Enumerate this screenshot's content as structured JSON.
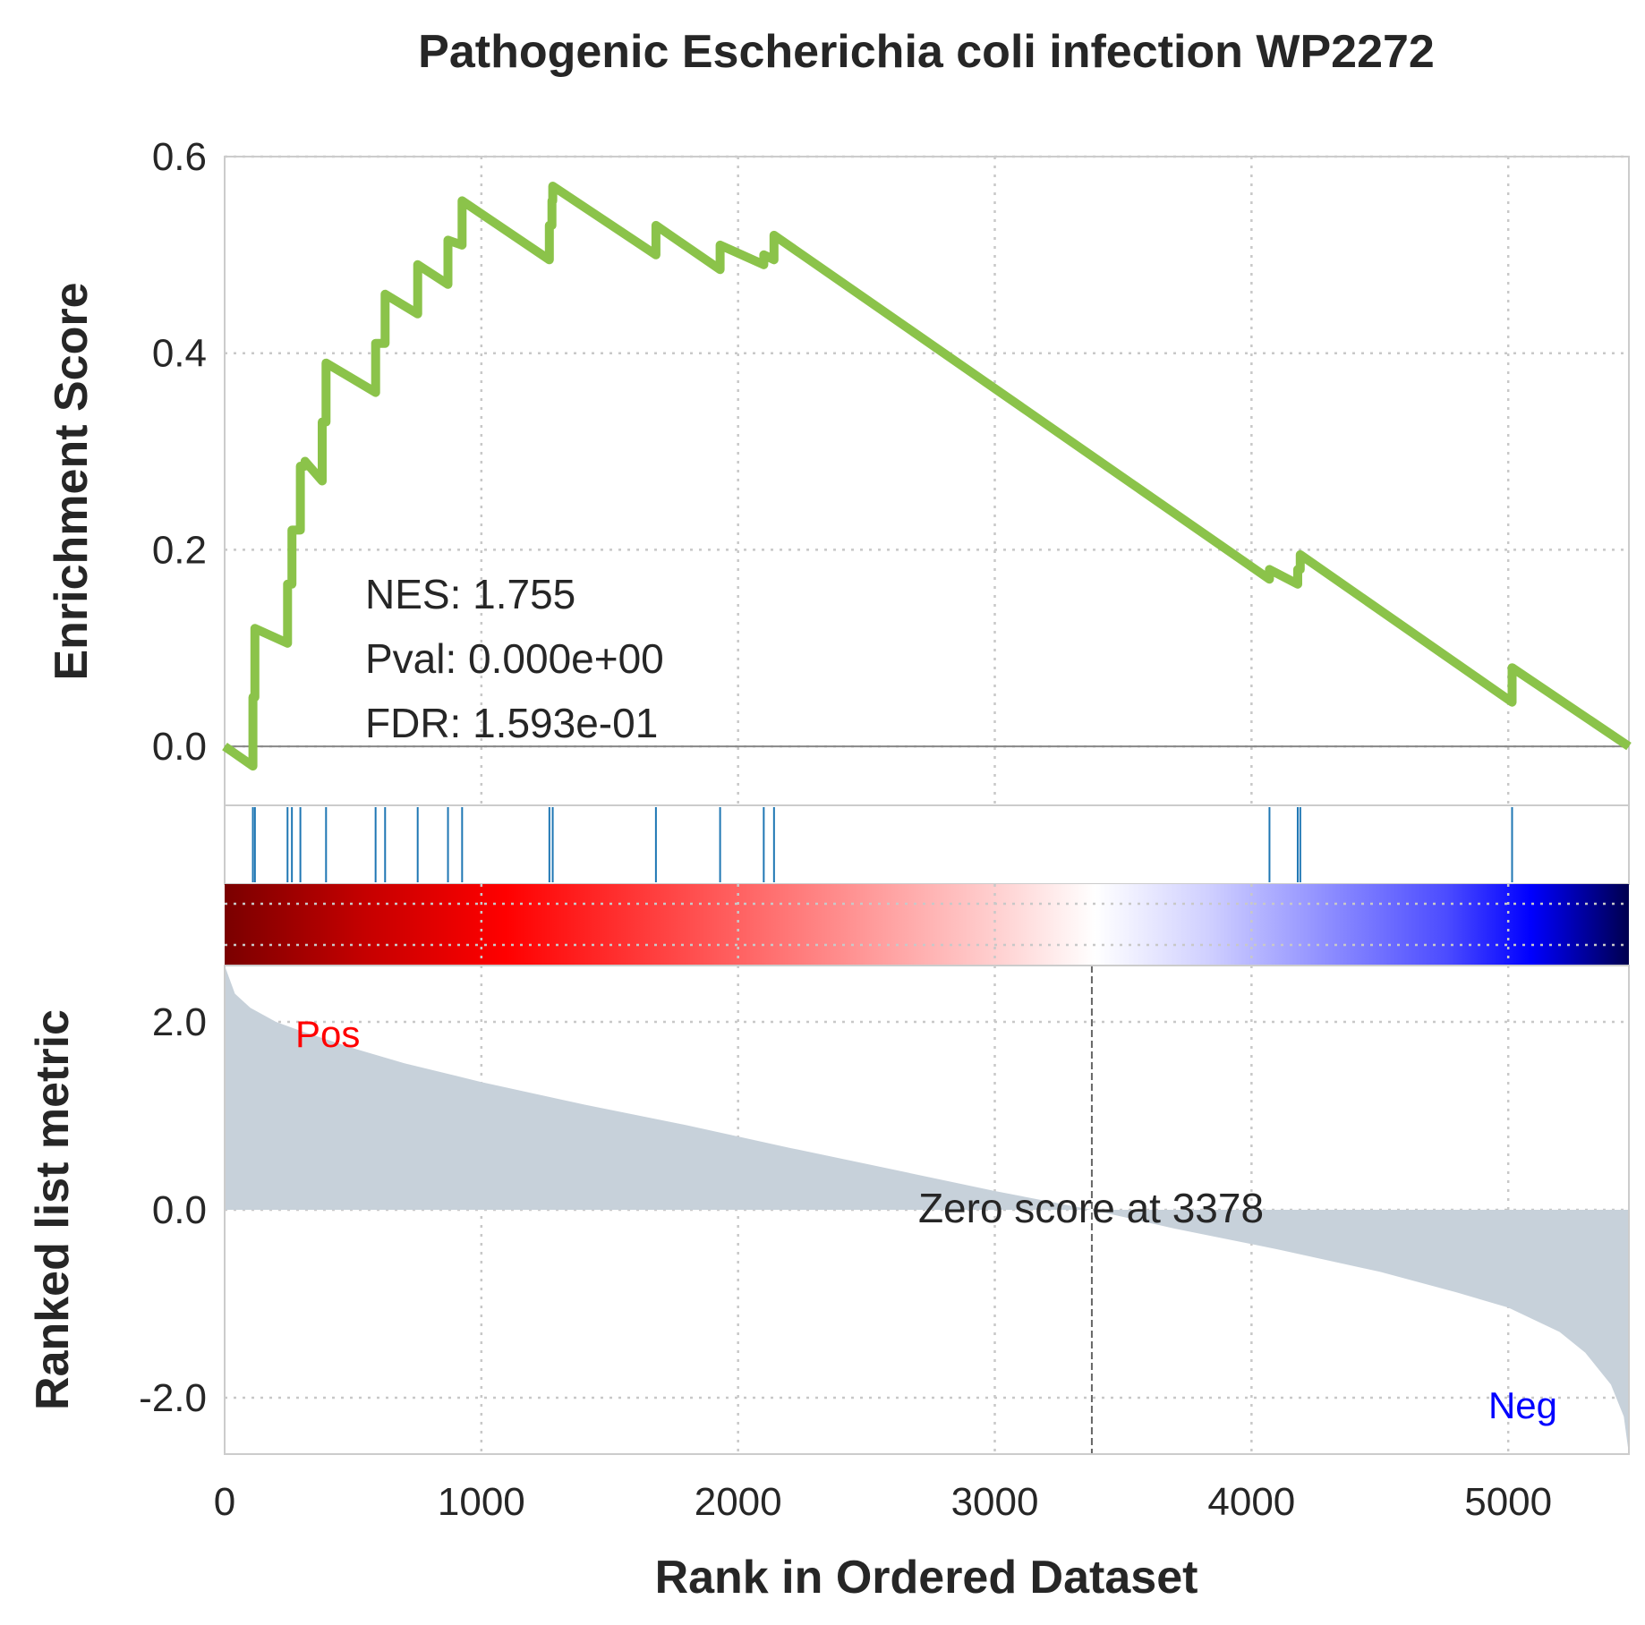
{
  "chart_data": {
    "type": "line",
    "title": "Pathogenic Escherichia coli infection WP2272",
    "xlabel": "Rank in Ordered Dataset",
    "xlim": [
      0,
      5470
    ],
    "x_ticks": [
      "0",
      "1000",
      "2000",
      "3000",
      "4000",
      "5000"
    ],
    "es_panel": {
      "ylabel": "Enrichment Score",
      "ylim": [
        -0.06,
        0.6
      ],
      "y_ticks": [
        "0.0",
        "0.2",
        "0.4",
        "0.6"
      ],
      "grid": true,
      "line_color": "#8bc34a",
      "series": [
        {
          "x": [
            0,
            110,
            110,
            118,
            118,
            245,
            245,
            262,
            262,
            295,
            295,
            313,
            313,
            380,
            380,
            395,
            395,
            588,
            588,
            625,
            625,
            752,
            752,
            870,
            870,
            925,
            925,
            1265,
            1265,
            1275,
            1275,
            1278,
            1278,
            1680,
            1680,
            1930,
            1930,
            2100,
            2100,
            2140,
            2140,
            4070,
            4070,
            4180,
            4180,
            4190,
            4190,
            5015,
            5015,
            5470
          ],
          "y": [
            0.0,
            -0.02,
            0.05,
            0.05,
            0.12,
            0.105,
            0.165,
            0.165,
            0.22,
            0.22,
            0.285,
            0.285,
            0.29,
            0.27,
            0.33,
            0.33,
            0.39,
            0.36,
            0.41,
            0.41,
            0.46,
            0.44,
            0.49,
            0.47,
            0.515,
            0.51,
            0.555,
            0.495,
            0.53,
            0.53,
            0.555,
            0.555,
            0.57,
            0.5,
            0.53,
            0.485,
            0.51,
            0.49,
            0.5,
            0.495,
            0.52,
            0.17,
            0.18,
            0.165,
            0.18,
            0.18,
            0.195,
            0.045,
            0.08,
            0.0
          ]
        }
      ],
      "annotations": [
        "NES: 1.755",
        "Pval: 0.000e+00",
        "FDR: 1.593e-01"
      ]
    },
    "hits": {
      "color": "#1f77b4",
      "positions": [
        110,
        118,
        245,
        262,
        295,
        395,
        588,
        625,
        752,
        870,
        925,
        1265,
        1278,
        1680,
        1930,
        2100,
        2140,
        4070,
        4180,
        4190,
        5015
      ]
    },
    "heatmap": {
      "colormap": "seismic",
      "direction": "high-to-low"
    },
    "metric_panel": {
      "ylabel": "Ranked list metric",
      "ylim": [
        -2.6,
        2.6
      ],
      "y_ticks": [
        "2.0",
        "0.0",
        "-2.0"
      ],
      "fill_color": "#c7d1da",
      "curve": {
        "x": [
          0,
          40,
          100,
          200,
          300,
          500,
          700,
          1000,
          1400,
          1800,
          2200,
          2600,
          3000,
          3378,
          3700,
          4100,
          4500,
          4800,
          5000,
          5200,
          5300,
          5400,
          5450,
          5470
        ],
        "y": [
          2.6,
          2.3,
          2.15,
          2.0,
          1.9,
          1.72,
          1.56,
          1.36,
          1.12,
          0.9,
          0.66,
          0.43,
          0.2,
          0.0,
          -0.2,
          -0.42,
          -0.66,
          -0.88,
          -1.04,
          -1.3,
          -1.52,
          -1.86,
          -2.2,
          -2.6
        ]
      },
      "pos_label": "Pos",
      "neg_label": "Neg",
      "pos_color": "#ff0000",
      "neg_color": "#0000ff",
      "zero_cross": 3378,
      "zero_label": "Zero score at 3378"
    }
  }
}
